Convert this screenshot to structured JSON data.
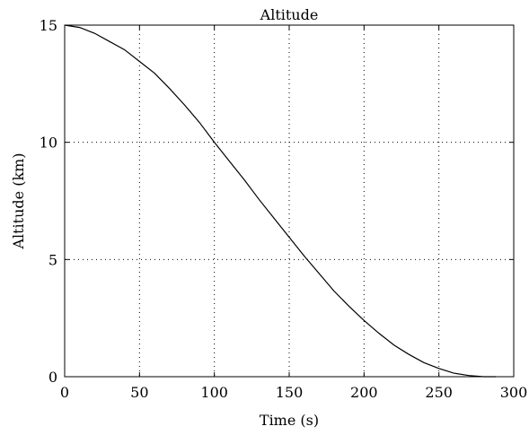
{
  "chart_data": {
    "type": "line",
    "title": "Altitude",
    "xlabel": "Time (s)",
    "ylabel": "Altitude (km)",
    "xlim": [
      0,
      300
    ],
    "ylim": [
      0,
      15
    ],
    "xticks": [
      0,
      50,
      100,
      150,
      200,
      250,
      300
    ],
    "yticks": [
      0,
      5,
      10,
      15
    ],
    "xtick_labels": [
      "0",
      "50",
      "100",
      "150",
      "200",
      "250",
      "300"
    ],
    "ytick_labels": [
      "0",
      "5",
      "10",
      "15"
    ],
    "grid": true,
    "legend": "none",
    "line_color": "#000000",
    "series": [
      {
        "x": [
          0,
          10,
          20,
          30,
          40,
          50,
          60,
          70,
          80,
          90,
          100,
          110,
          120,
          130,
          140,
          150,
          160,
          170,
          180,
          190,
          200,
          210,
          220,
          230,
          240,
          250,
          260,
          270,
          280,
          288
        ],
        "y": [
          15.0,
          14.9,
          14.65,
          14.3,
          13.95,
          13.45,
          12.95,
          12.3,
          11.6,
          10.85,
          10.0,
          9.2,
          8.4,
          7.55,
          6.75,
          5.95,
          5.15,
          4.4,
          3.65,
          3.0,
          2.4,
          1.85,
          1.35,
          0.95,
          0.6,
          0.35,
          0.15,
          0.05,
          0.0,
          0.0
        ]
      }
    ]
  }
}
